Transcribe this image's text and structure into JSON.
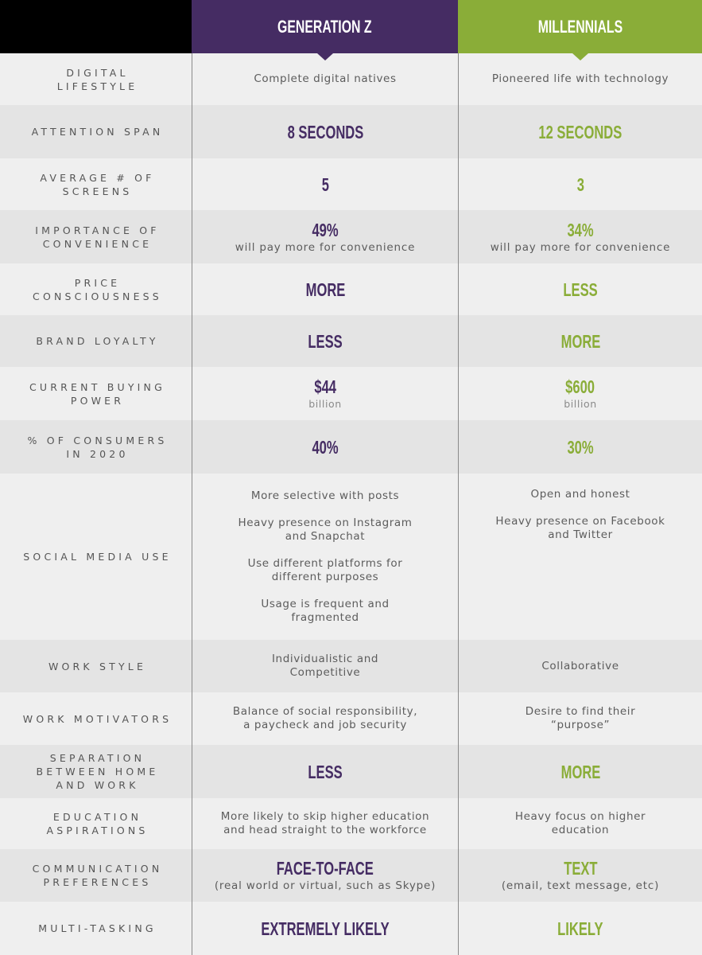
{
  "header": {
    "gen_z_title": "GENERATION Z",
    "millennials_title": "MILLENNIALS",
    "colors": {
      "gen_z": "#452c63",
      "millennials": "#8aad38",
      "corner": "#000000"
    }
  },
  "rows": [
    {
      "label": [
        "DIGITAL",
        "LIFESTYLE"
      ],
      "gen_z": {
        "text": "Complete digital natives"
      },
      "millennials": {
        "text": "Pioneered life with technology"
      }
    },
    {
      "label": [
        "ATTENTION SPAN"
      ],
      "gen_z": {
        "big": "8 SECONDS"
      },
      "millennials": {
        "big": "12 SECONDS"
      }
    },
    {
      "label": [
        "AVERAGE # OF",
        "SCREENS"
      ],
      "gen_z": {
        "big": "5"
      },
      "millennials": {
        "big": "3"
      }
    },
    {
      "label": [
        "IMPORTANCE OF",
        "CONVENIENCE"
      ],
      "gen_z": {
        "big": "49%",
        "sub": "will pay more for convenience"
      },
      "millennials": {
        "big": "34%",
        "sub": "will pay more for convenience"
      }
    },
    {
      "label": [
        "PRICE",
        "CONSCIOUSNESS"
      ],
      "gen_z": {
        "big": "MORE"
      },
      "millennials": {
        "big": "LESS"
      }
    },
    {
      "label": [
        "BRAND LOYALTY"
      ],
      "gen_z": {
        "big": "LESS"
      },
      "millennials": {
        "big": "MORE"
      }
    },
    {
      "label": [
        "CURRENT BUYING",
        "POWER"
      ],
      "gen_z": {
        "big": "$44",
        "sub": "billion"
      },
      "millennials": {
        "big": "$600",
        "sub": "billion"
      }
    },
    {
      "label": [
        "% OF CONSUMERS",
        "IN 2020"
      ],
      "gen_z": {
        "big": "40%"
      },
      "millennials": {
        "big": "30%"
      }
    },
    {
      "label": [
        "SOCIAL MEDIA USE"
      ],
      "gen_z": {
        "items": [
          [
            "More selective with posts"
          ],
          [
            "Heavy presence on Instagram",
            "and Snapchat"
          ],
          [
            "Use different platforms for",
            "different purposes"
          ],
          [
            "Usage is frequent and",
            "fragmented"
          ]
        ]
      },
      "millennials": {
        "items": [
          [
            "Open and honest"
          ],
          [
            "Heavy presence on Facebook",
            "and Twitter"
          ]
        ]
      }
    },
    {
      "label": [
        "WORK STYLE"
      ],
      "gen_z": {
        "lines": [
          "Individualistic and",
          "Competitive"
        ]
      },
      "millennials": {
        "text": "Collaborative"
      }
    },
    {
      "label": [
        "WORK MOTIVATORS"
      ],
      "gen_z": {
        "lines": [
          "Balance of social responsibility,",
          "a paycheck and job security"
        ]
      },
      "millennials": {
        "lines": [
          "Desire to find their",
          "“purpose”"
        ]
      }
    },
    {
      "label": [
        "SEPARATION",
        "BETWEEN HOME",
        "AND WORK"
      ],
      "gen_z": {
        "big": "LESS"
      },
      "millennials": {
        "big": "MORE"
      }
    },
    {
      "label": [
        "EDUCATION",
        "ASPIRATIONS"
      ],
      "gen_z": {
        "lines": [
          "More likely to skip higher education",
          "and head straight to the workforce"
        ]
      },
      "millennials": {
        "lines": [
          "Heavy focus on higher",
          "education"
        ]
      }
    },
    {
      "label": [
        "COMMUNICATION",
        "PREFERENCES"
      ],
      "gen_z": {
        "big": "FACE-TO-FACE",
        "sub": "(real world or virtual, such as Skype)"
      },
      "millennials": {
        "big": "TEXT",
        "sub": "(email, text message, etc)"
      }
    },
    {
      "label": [
        "MULTI-TASKING"
      ],
      "gen_z": {
        "big": "EXTREMELY LIKELY"
      },
      "millennials": {
        "big": "LIKELY"
      }
    }
  ]
}
